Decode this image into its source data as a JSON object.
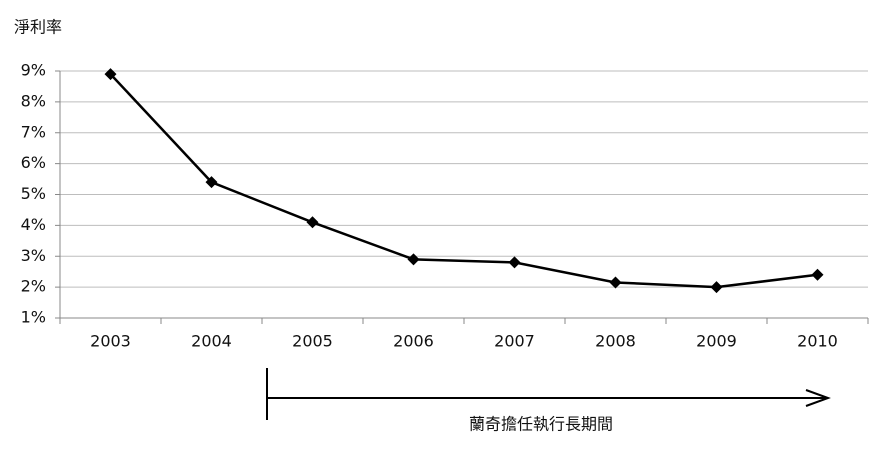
{
  "chart_data": {
    "type": "line",
    "title": "淨利率",
    "categories": [
      "2003",
      "2004",
      "2005",
      "2006",
      "2007",
      "2008",
      "2009",
      "2010"
    ],
    "values": [
      8.9,
      5.4,
      4.1,
      2.9,
      2.8,
      2.15,
      2.0,
      2.4
    ],
    "color": "#000000",
    "ylim": [
      1,
      9
    ],
    "yticks": [
      {
        "value": 1,
        "label": "1%"
      },
      {
        "value": 2,
        "label": "2%"
      },
      {
        "value": 3,
        "label": "3%"
      },
      {
        "value": 4,
        "label": "4%"
      },
      {
        "value": 5,
        "label": "5%"
      },
      {
        "value": 6,
        "label": "6%"
      },
      {
        "value": 7,
        "label": "7%"
      },
      {
        "value": 8,
        "label": "8%"
      },
      {
        "value": 9,
        "label": "9%"
      }
    ],
    "grid": true,
    "annotation": "蘭奇擔任執行長期間"
  }
}
